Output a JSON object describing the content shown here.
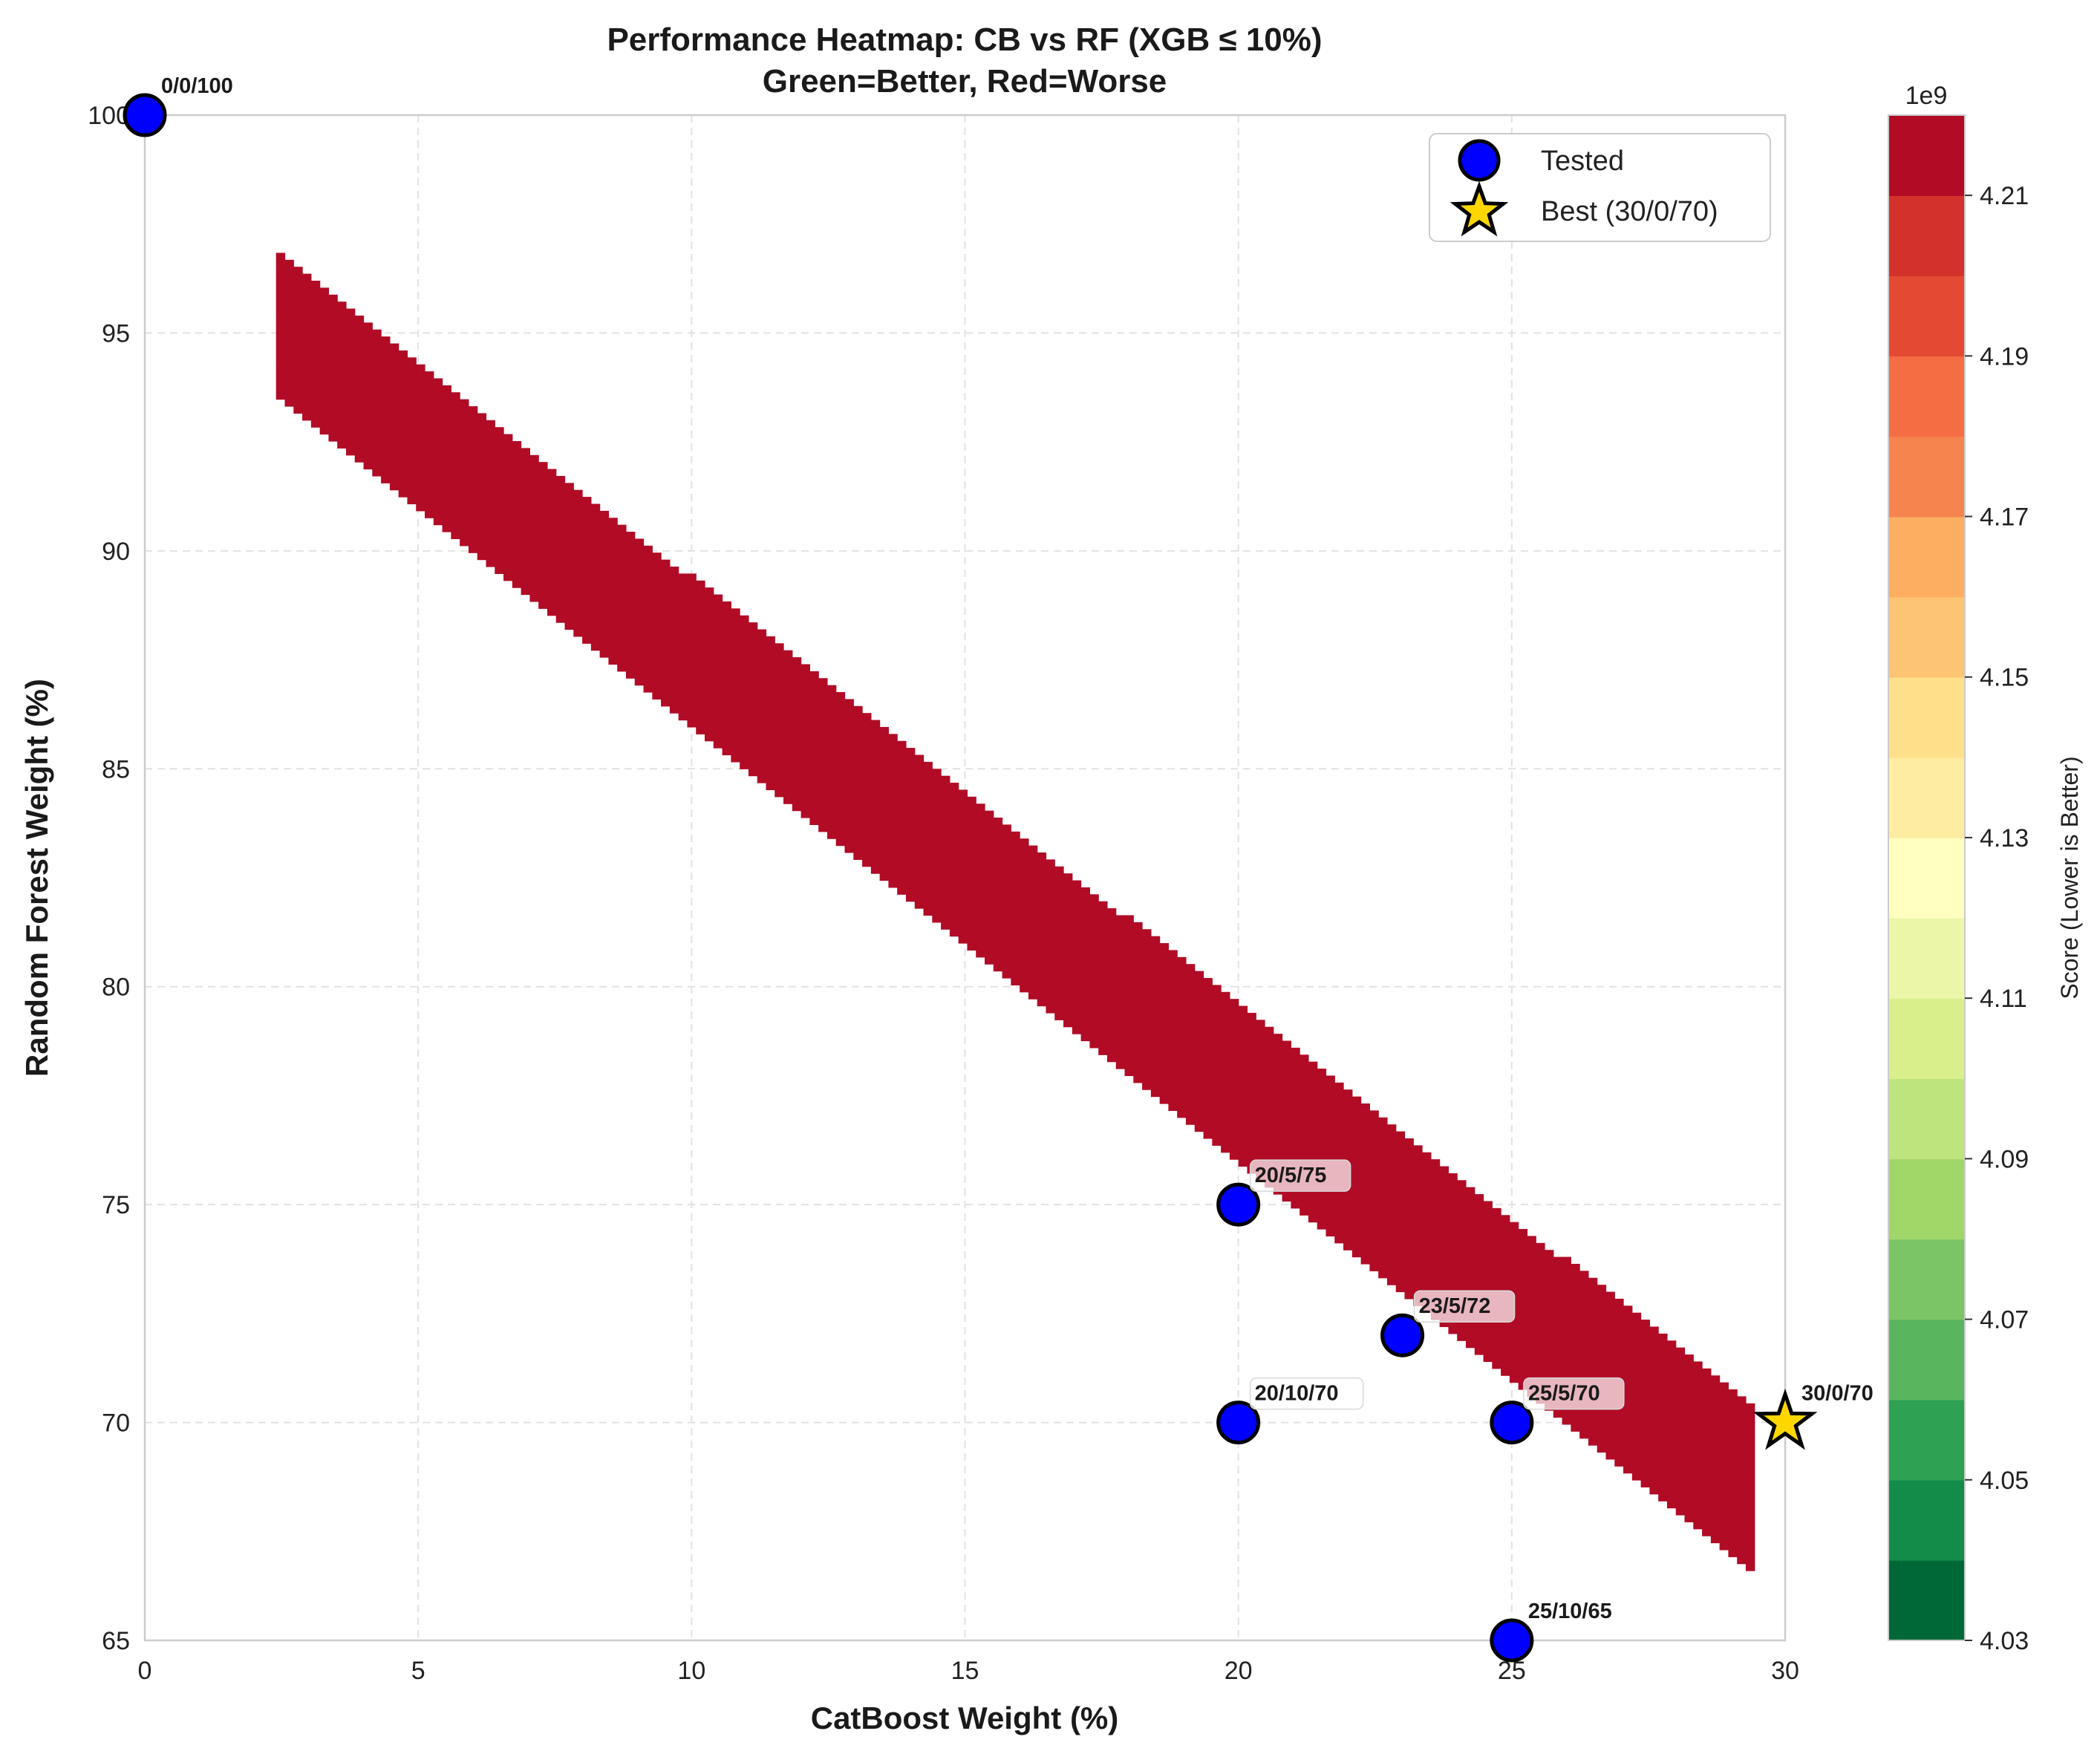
{
  "chart_data": {
    "type": "heatmap",
    "title": "Performance Heatmap: CB vs RF (XGB ≤ 10%)",
    "subtitle": "Green=Better, Red=Worse",
    "xlabel": "CatBoost Weight (%)",
    "ylabel": "Random Forest Weight (%)",
    "xlim": [
      0,
      30
    ],
    "ylim": [
      65,
      100
    ],
    "xticks": [
      0,
      5,
      10,
      15,
      20,
      25,
      30
    ],
    "yticks": [
      65,
      70,
      75,
      80,
      85,
      90,
      95,
      100
    ],
    "grid": true,
    "legend_position": "top-right",
    "legend": [
      {
        "label": "Tested",
        "marker": "circle",
        "color": "#0000ff"
      },
      {
        "label": "Best (30/0/70)",
        "marker": "star",
        "color": "#ffd700"
      }
    ],
    "colorbar": {
      "label": "Score (Lower is Better)",
      "offset_text": "1e9",
      "range": [
        4.03,
        4.22
      ],
      "ticks": [
        "4.03",
        "4.05",
        "4.07",
        "4.09",
        "4.11",
        "4.13",
        "4.15",
        "4.17",
        "4.19",
        "4.21"
      ],
      "levels": 19,
      "colormap": [
        "#006837",
        "#138c4a",
        "#2fa153",
        "#59b65e",
        "#7cc566",
        "#a1d669",
        "#bee47d",
        "#d9ef8b",
        "#ecf6a8",
        "#ffffbf",
        "#feeca0",
        "#fee08b",
        "#fdc473",
        "#fdae61",
        "#f6844f",
        "#f46d43",
        "#e44a33",
        "#d3322c",
        "#b10b26"
      ]
    },
    "surface": {
      "description_value_unit": "score in units of 1e9",
      "value_model": "4.03 + 0.0062*(100 - RF) + 0.01*(30 - CB), clipped to colorbar range",
      "domain": "triangle band between RF = 100 - CB - 4 (lower edge) and RF = 100 - 0.98*CB (upper edge) from CB 2.4 to 29.5"
    },
    "points": [
      {
        "cb": 0,
        "rf": 100,
        "label": "0/0/100",
        "type": "tested"
      },
      {
        "cb": 20,
        "rf": 75,
        "label": "20/5/75",
        "type": "tested"
      },
      {
        "cb": 23,
        "rf": 72,
        "label": "23/5/72",
        "type": "tested"
      },
      {
        "cb": 20,
        "rf": 70,
        "label": "20/10/70",
        "type": "tested"
      },
      {
        "cb": 25,
        "rf": 70,
        "label": "25/5/70",
        "type": "tested"
      },
      {
        "cb": 25,
        "rf": 65,
        "label": "25/10/65",
        "type": "tested"
      },
      {
        "cb": 30,
        "rf": 70,
        "label": "30/0/70",
        "type": "best"
      }
    ]
  }
}
